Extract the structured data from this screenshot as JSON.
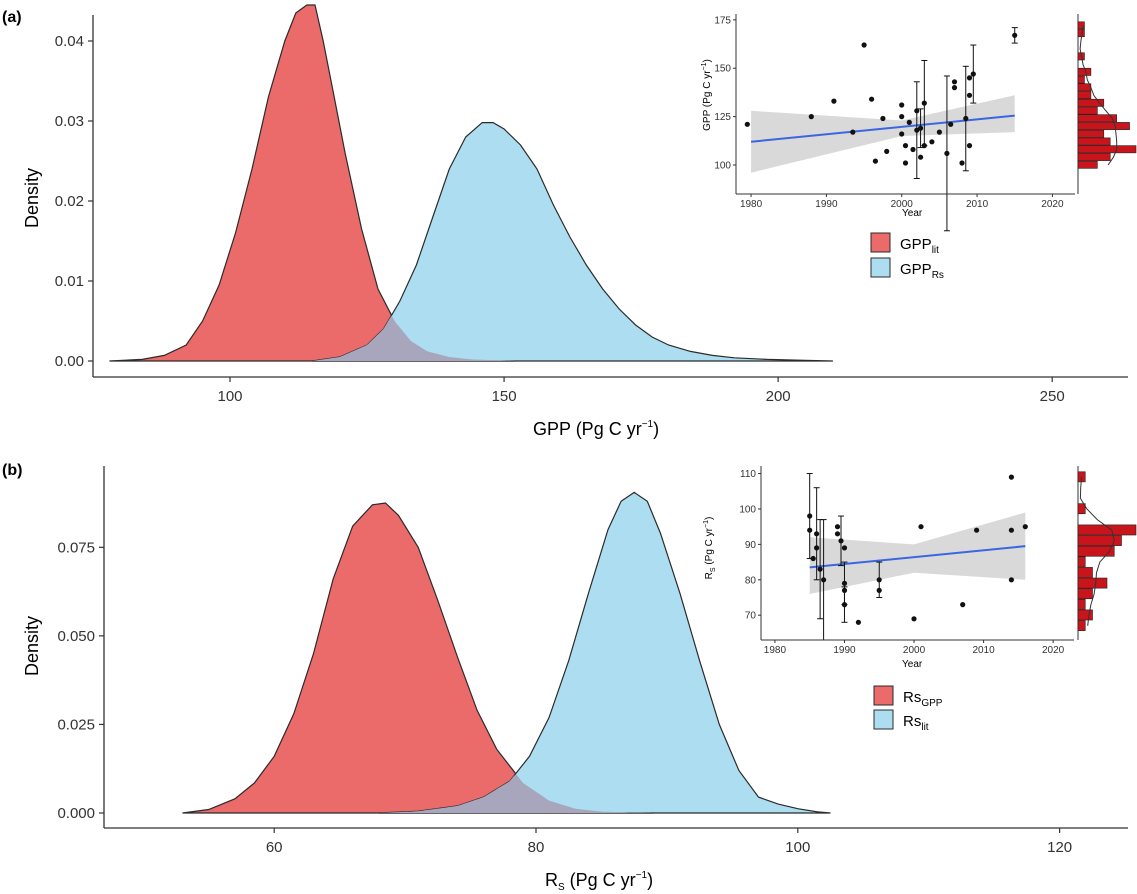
{
  "colors": {
    "red_fill": "#EB6A6A",
    "blue_fill": "#ADDDF0",
    "overlap_fill": "#A8A6BC",
    "outline": "#2b2b2b",
    "trend_line": "#3A66E0",
    "ci_band": "#D9D9D9",
    "hist_fill": "#C8141B"
  },
  "chart_data": [
    {
      "panel": "(a)",
      "type": "area",
      "xlabel": "GPP (Pg C yr",
      "xlabel_sup": "−1",
      "xlabel_tail": ")",
      "ylabel": "Density",
      "xlim": [
        75,
        260
      ],
      "ylim": [
        0,
        0.045
      ],
      "x_ticks": [
        100,
        150,
        200,
        250
      ],
      "y_ticks": [
        "0.00",
        "0.01",
        "0.02",
        "0.03",
        "0.04"
      ],
      "series": [
        {
          "name": "GPP",
          "name_sub": "lit",
          "color": "red",
          "x": [
            78,
            84,
            88,
            92,
            95,
            98,
            101,
            104,
            107,
            110,
            112,
            114,
            115.5,
            117,
            119,
            121,
            124,
            127,
            130,
            133,
            136,
            140,
            144,
            148,
            152
          ],
          "y": [
            0,
            0.0002,
            0.0007,
            0.002,
            0.005,
            0.0095,
            0.016,
            0.024,
            0.033,
            0.04,
            0.0435,
            0.0445,
            0.0445,
            0.04,
            0.033,
            0.026,
            0.0165,
            0.009,
            0.005,
            0.0025,
            0.0012,
            0.0005,
            0.0002,
            0.0001,
            0
          ]
        },
        {
          "name": "GPP",
          "name_sub": "Rs",
          "color": "blue",
          "x": [
            115,
            120,
            125,
            128,
            131,
            134,
            137,
            140,
            143,
            146,
            148,
            150,
            153,
            156,
            159,
            162,
            165,
            168,
            171,
            174,
            177,
            180,
            184,
            188,
            192,
            198,
            204,
            210
          ],
          "y": [
            0,
            0.0005,
            0.002,
            0.004,
            0.0075,
            0.012,
            0.018,
            0.024,
            0.028,
            0.0298,
            0.0298,
            0.029,
            0.027,
            0.024,
            0.0195,
            0.0155,
            0.012,
            0.009,
            0.0065,
            0.0045,
            0.003,
            0.002,
            0.0012,
            0.0007,
            0.0004,
            0.0002,
            0.0001,
            0
          ]
        }
      ],
      "legend": {
        "position": "right"
      },
      "inset": {
        "type": "scatter",
        "ylabel": "GPP (Pg C yr",
        "ylabel_sup": "−1",
        "ylabel_tail": ")",
        "xlabel": "Year",
        "xlim": [
          1978,
          2023
        ],
        "ylim": [
          85,
          177
        ],
        "x_ticks": [
          1980,
          1990,
          2000,
          2010,
          2020
        ],
        "y_ticks": [
          100,
          125,
          150,
          175
        ],
        "trend": {
          "x": [
            1980,
            2015
          ],
          "y": [
            112,
            125.5
          ]
        },
        "ci": {
          "x": [
            1980,
            2000,
            2015
          ],
          "upper": [
            128,
            123,
            136
          ],
          "lower": [
            96,
            115,
            117
          ]
        },
        "points": [
          {
            "x": 1979.5,
            "y": 121
          },
          {
            "x": 1988,
            "y": 125
          },
          {
            "x": 1991,
            "y": 133
          },
          {
            "x": 1993.5,
            "y": 117
          },
          {
            "x": 1995,
            "y": 162
          },
          {
            "x": 1996,
            "y": 134
          },
          {
            "x": 1996.5,
            "y": 102
          },
          {
            "x": 1997.5,
            "y": 124
          },
          {
            "x": 1998,
            "y": 107
          },
          {
            "x": 2000,
            "y": 131
          },
          {
            "x": 2000,
            "y": 125
          },
          {
            "x": 2000,
            "y": 116
          },
          {
            "x": 2000.5,
            "y": 110
          },
          {
            "x": 2000.5,
            "y": 101
          },
          {
            "x": 2001,
            "y": 122
          },
          {
            "x": 2001.5,
            "y": 108
          },
          {
            "x": 2002,
            "y": 128
          },
          {
            "x": 2002,
            "y": 118,
            "err": 25
          },
          {
            "x": 2002.5,
            "y": 104
          },
          {
            "x": 2002.5,
            "y": 119,
            "err": 10
          },
          {
            "x": 2003,
            "y": 132,
            "err": 22
          },
          {
            "x": 2003,
            "y": 110
          },
          {
            "x": 2004,
            "y": 112
          },
          {
            "x": 2005,
            "y": 117
          },
          {
            "x": 2006,
            "y": 106,
            "err": 40
          },
          {
            "x": 2006.5,
            "y": 121
          },
          {
            "x": 2007,
            "y": 140
          },
          {
            "x": 2007,
            "y": 143
          },
          {
            "x": 2008,
            "y": 101
          },
          {
            "x": 2008.5,
            "y": 124,
            "err": 27
          },
          {
            "x": 2009,
            "y": 145
          },
          {
            "x": 2009,
            "y": 136
          },
          {
            "x": 2009,
            "y": 110
          },
          {
            "x": 2009.5,
            "y": 147,
            "err": 15
          },
          {
            "x": 2015,
            "y": 167,
            "err": 4
          }
        ],
        "histogram": {
          "bins": [
            172,
            168,
            164,
            160,
            156,
            152,
            148,
            144,
            140,
            136,
            132,
            128,
            124,
            120,
            116,
            112,
            108,
            104,
            100
          ],
          "counts": [
            1,
            1,
            0,
            0,
            1,
            0,
            2,
            1,
            2,
            2,
            4,
            3,
            6,
            8,
            4,
            5,
            9,
            5,
            3
          ]
        }
      }
    },
    {
      "panel": "(b)",
      "type": "area",
      "xlabel": "R",
      "xlabel_sub": "S",
      "xlabel_mid": " (Pg C yr",
      "xlabel_sup": "−1",
      "xlabel_tail": ")",
      "ylabel": "Density",
      "xlim": [
        47,
        124
      ],
      "ylim": [
        0,
        0.094
      ],
      "x_ticks": [
        60,
        80,
        100,
        120
      ],
      "y_ticks": [
        "0.000",
        "0.025",
        "0.050",
        "0.075"
      ],
      "series": [
        {
          "name": "Rs",
          "name_sub": "GPP",
          "color": "red",
          "x": [
            53,
            55,
            57,
            58.5,
            60,
            61.5,
            63,
            64.5,
            66,
            67.5,
            68.5,
            69.5,
            71,
            72.5,
            74,
            75.5,
            77,
            79,
            81,
            83,
            85,
            87,
            89
          ],
          "y": [
            0,
            0.001,
            0.004,
            0.0085,
            0.016,
            0.028,
            0.045,
            0.066,
            0.081,
            0.087,
            0.0875,
            0.084,
            0.075,
            0.06,
            0.044,
            0.029,
            0.018,
            0.0085,
            0.0035,
            0.0012,
            0.0004,
            0.0001,
            0
          ]
        },
        {
          "name": "Rs",
          "name_sub": "lit",
          "color": "blue",
          "x": [
            68,
            71,
            74,
            76,
            78,
            79.5,
            81,
            82.5,
            84,
            85.5,
            86.5,
            87.5,
            88.5,
            89.5,
            91,
            92.5,
            94,
            95.5,
            97,
            98.5,
            100,
            101.5,
            102.5
          ],
          "y": [
            0,
            0.0005,
            0.002,
            0.0045,
            0.009,
            0.016,
            0.027,
            0.043,
            0.062,
            0.08,
            0.088,
            0.0905,
            0.088,
            0.079,
            0.062,
            0.043,
            0.025,
            0.012,
            0.0045,
            0.0025,
            0.0012,
            0.0003,
            0
          ]
        }
      ],
      "legend": {
        "position": "right"
      },
      "inset": {
        "type": "scatter",
        "ylabel": "R",
        "ylabel_sub": "S",
        "ylabel_mid": " (Pg C yr",
        "ylabel_sup": "−1",
        "ylabel_tail": ")",
        "xlabel": "Year",
        "xlim": [
          1978,
          2023
        ],
        "ylim": [
          63,
          111
        ],
        "x_ticks": [
          1980,
          1990,
          2000,
          2010,
          2020
        ],
        "y_ticks": [
          70,
          80,
          90,
          100,
          110
        ],
        "trend": {
          "x": [
            1985,
            2016
          ],
          "y": [
            83.5,
            89.5
          ]
        },
        "ci": {
          "x": [
            1985,
            2000,
            2016
          ],
          "upper": [
            92,
            90,
            99
          ],
          "lower": [
            76,
            82,
            80
          ]
        },
        "points": [
          {
            "x": 1985,
            "y": 98,
            "err": 12
          },
          {
            "x": 1985,
            "y": 94
          },
          {
            "x": 1985.5,
            "y": 86
          },
          {
            "x": 1986,
            "y": 93,
            "err": 13
          },
          {
            "x": 1986,
            "y": 89
          },
          {
            "x": 1986.5,
            "y": 83,
            "err": 14
          },
          {
            "x": 1987,
            "y": 80,
            "err": 17
          },
          {
            "x": 1989,
            "y": 95
          },
          {
            "x": 1989,
            "y": 93
          },
          {
            "x": 1989.5,
            "y": 91,
            "err": 7
          },
          {
            "x": 1990,
            "y": 89
          },
          {
            "x": 1990,
            "y": 79,
            "err": 6
          },
          {
            "x": 1990,
            "y": 77
          },
          {
            "x": 1990,
            "y": 73,
            "err": 5
          },
          {
            "x": 1992,
            "y": 68
          },
          {
            "x": 1995,
            "y": 80,
            "err": 5
          },
          {
            "x": 1995,
            "y": 77
          },
          {
            "x": 2000,
            "y": 69
          },
          {
            "x": 2001,
            "y": 95
          },
          {
            "x": 2007,
            "y": 73
          },
          {
            "x": 2009,
            "y": 94
          },
          {
            "x": 2014,
            "y": 109
          },
          {
            "x": 2014,
            "y": 94
          },
          {
            "x": 2014,
            "y": 80
          },
          {
            "x": 2016,
            "y": 95
          }
        ],
        "histogram": {
          "bins": [
            109,
            106,
            103,
            100,
            97,
            94,
            91,
            88,
            85,
            82,
            79,
            76,
            73,
            70,
            67
          ],
          "counts": [
            1,
            0,
            0,
            1,
            0,
            8,
            6,
            5,
            1,
            2,
            4,
            2,
            1,
            2,
            1
          ]
        }
      }
    }
  ]
}
